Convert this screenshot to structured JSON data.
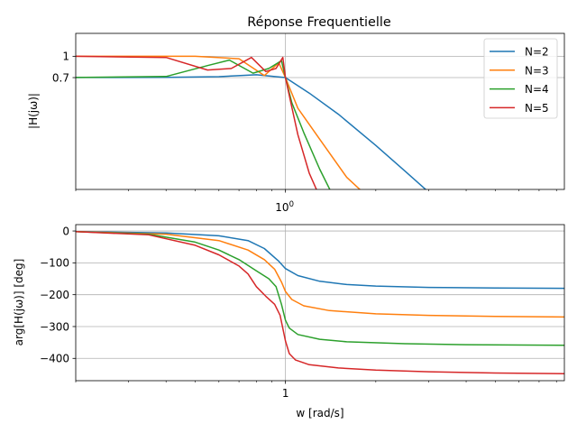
{
  "chart_data": [
    {
      "type": "line",
      "title": "Réponse Frequentielle",
      "xlabel": "",
      "ylabel": "|H(jω)|",
      "xscale": "log",
      "yscale": "log",
      "xlim": [
        0.2,
        8.5
      ],
      "ylim": [
        0.115,
        1.45
      ],
      "grid": true,
      "legend_position": "top-right",
      "xtick_labels": [
        "10^0"
      ],
      "ytick_labels": [
        "1",
        "0.7"
      ],
      "series": [
        {
          "name": "N=2",
          "color": "#1f77b4",
          "x": [
            0.2,
            0.4,
            0.6,
            0.8,
            1.0,
            1.2,
            1.5,
            2.0,
            2.5,
            3.0,
            3.3
          ],
          "values": [
            0.708,
            0.709,
            0.718,
            0.74,
            0.707,
            0.55,
            0.39,
            0.235,
            0.155,
            0.11,
            0.09
          ]
        },
        {
          "name": "N=3",
          "color": "#ff7f0e",
          "x": [
            0.2,
            0.5,
            0.7,
            0.85,
            0.95,
            1.0,
            1.1,
            1.3,
            1.6,
            1.9
          ],
          "values": [
            1.0,
            1.0,
            0.96,
            0.73,
            0.9,
            0.707,
            0.43,
            0.26,
            0.14,
            0.1
          ]
        },
        {
          "name": "N=4",
          "color": "#2ca02c",
          "x": [
            0.2,
            0.4,
            0.55,
            0.65,
            0.78,
            0.88,
            0.97,
            1.0,
            1.05,
            1.15,
            1.3,
            1.42
          ],
          "values": [
            0.708,
            0.72,
            0.86,
            0.94,
            0.76,
            0.82,
            0.93,
            0.707,
            0.47,
            0.29,
            0.16,
            0.11
          ]
        },
        {
          "name": "N=5",
          "color": "#d62728",
          "x": [
            0.2,
            0.4,
            0.55,
            0.66,
            0.77,
            0.86,
            0.93,
            0.98,
            1.0,
            1.04,
            1.1,
            1.2,
            1.28
          ],
          "values": [
            1.0,
            0.98,
            0.8,
            0.82,
            0.98,
            0.78,
            0.82,
            0.98,
            0.707,
            0.48,
            0.28,
            0.15,
            0.11
          ]
        }
      ]
    },
    {
      "type": "line",
      "title": "",
      "xlabel": "w [rad/s]",
      "ylabel": "arg[H(jω)] [deg]",
      "xscale": "log",
      "xlim": [
        0.2,
        8.5
      ],
      "ylim": [
        -470,
        20
      ],
      "grid": true,
      "xtick_labels": [
        "1"
      ],
      "yticks": [
        0,
        -100,
        -200,
        -300,
        -400
      ],
      "ytick_labels": [
        "0",
        "−100",
        "−200",
        "−300",
        "−400"
      ],
      "series": [
        {
          "name": "N=2",
          "color": "#1f77b4",
          "x": [
            0.2,
            0.4,
            0.6,
            0.75,
            0.85,
            0.95,
            1.0,
            1.1,
            1.3,
            1.6,
            2.0,
            3.0,
            5.0,
            8.5
          ],
          "values": [
            -2,
            -6,
            -15,
            -30,
            -55,
            -95,
            -118,
            -140,
            -158,
            -168,
            -173,
            -177,
            -179,
            -180
          ]
        },
        {
          "name": "N=3",
          "color": "#ff7f0e",
          "x": [
            0.2,
            0.4,
            0.6,
            0.75,
            0.85,
            0.92,
            0.97,
            1.0,
            1.05,
            1.15,
            1.4,
            2.0,
            3.0,
            5.0,
            8.5
          ],
          "values": [
            -2,
            -10,
            -30,
            -60,
            -90,
            -120,
            -160,
            -190,
            -215,
            -235,
            -250,
            -260,
            -265,
            -268,
            -270
          ]
        },
        {
          "name": "N=4",
          "color": "#2ca02c",
          "x": [
            0.2,
            0.35,
            0.5,
            0.6,
            0.7,
            0.8,
            0.88,
            0.93,
            0.97,
            1.0,
            1.03,
            1.1,
            1.3,
            1.6,
            2.5,
            4.0,
            8.5
          ],
          "values": [
            -2,
            -10,
            -35,
            -60,
            -90,
            -125,
            -150,
            -175,
            -230,
            -280,
            -305,
            -325,
            -340,
            -348,
            -354,
            -357,
            -359
          ]
        },
        {
          "name": "N=5",
          "color": "#d62728",
          "x": [
            0.2,
            0.35,
            0.5,
            0.6,
            0.7,
            0.75,
            0.8,
            0.86,
            0.92,
            0.96,
            1.0,
            1.03,
            1.08,
            1.2,
            1.5,
            2.0,
            3.0,
            5.0,
            8.5
          ],
          "values": [
            -2,
            -12,
            -45,
            -75,
            -110,
            -135,
            -175,
            -205,
            -230,
            -265,
            -345,
            -385,
            -405,
            -420,
            -430,
            -437,
            -442,
            -446,
            -448
          ]
        }
      ]
    }
  ]
}
